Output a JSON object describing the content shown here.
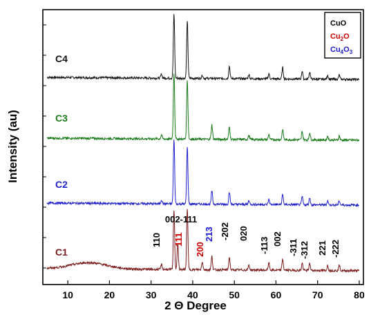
{
  "chart_data": {
    "type": "line",
    "xlabel": "2 Θ Degree",
    "ylabel": "Intensity (au)",
    "xlim": [
      4,
      81
    ],
    "x_ticks": [
      "10",
      "20",
      "30",
      "40",
      "50",
      "60",
      "70",
      "80"
    ],
    "x_tick_values": [
      10,
      20,
      30,
      40,
      50,
      60,
      70,
      80
    ],
    "grid": false,
    "legend": {
      "placement": "top-right",
      "entries": [
        {
          "base": "CuO",
          "sub": "",
          "base2": "",
          "sub2": "",
          "color": "#000000"
        },
        {
          "base": "Cu",
          "sub": "2",
          "base2": "O",
          "sub2": "",
          "color": "#cc0000"
        },
        {
          "base": "Cu",
          "sub": "4",
          "base2": "O",
          "sub2": "3",
          "color": "#1a1acc"
        }
      ]
    },
    "x_range": [
      5,
      80
    ],
    "series": [
      {
        "name": "C4",
        "color": "#111111",
        "baseline": 0.0,
        "peaks": [
          [
            35.5,
            0.62
          ],
          [
            38.7,
            0.55
          ],
          [
            48.8,
            0.12
          ],
          [
            61.6,
            0.11
          ],
          [
            66.3,
            0.08
          ],
          [
            68.1,
            0.07
          ],
          [
            58.3,
            0.05
          ],
          [
            53.5,
            0.04
          ],
          [
            32.5,
            0.04
          ],
          [
            72.4,
            0.04
          ],
          [
            75.2,
            0.04
          ],
          [
            42.3,
            0.03
          ]
        ]
      },
      {
        "name": "C3",
        "color": "#1a7a1a",
        "baseline": 0.0,
        "peaks": [
          [
            35.5,
            0.64
          ],
          [
            38.7,
            0.57
          ],
          [
            44.6,
            0.14
          ],
          [
            48.8,
            0.12
          ],
          [
            61.6,
            0.1
          ],
          [
            66.3,
            0.08
          ],
          [
            68.1,
            0.07
          ],
          [
            58.3,
            0.05
          ],
          [
            53.5,
            0.04
          ],
          [
            32.5,
            0.04
          ],
          [
            72.4,
            0.04
          ],
          [
            75.2,
            0.04
          ]
        ]
      },
      {
        "name": "C2",
        "color": "#1f1fcc",
        "baseline": 0.0,
        "peaks": [
          [
            35.5,
            0.62
          ],
          [
            38.7,
            0.55
          ],
          [
            44.6,
            0.13
          ],
          [
            48.8,
            0.12
          ],
          [
            61.6,
            0.1
          ],
          [
            66.3,
            0.08
          ],
          [
            68.1,
            0.07
          ],
          [
            58.3,
            0.05
          ],
          [
            53.5,
            0.04
          ],
          [
            32.5,
            0.04
          ],
          [
            72.4,
            0.04
          ],
          [
            75.2,
            0.04
          ]
        ]
      },
      {
        "name": "C1",
        "color": "#7a1a1a",
        "baseline": 0.06,
        "peaks": [
          [
            35.5,
            0.58
          ],
          [
            36.4,
            0.25
          ],
          [
            38.7,
            0.6
          ],
          [
            42.3,
            0.08
          ],
          [
            44.6,
            0.13
          ],
          [
            48.8,
            0.12
          ],
          [
            53.5,
            0.05
          ],
          [
            58.3,
            0.07
          ],
          [
            61.6,
            0.11
          ],
          [
            66.3,
            0.07
          ],
          [
            68.1,
            0.07
          ],
          [
            72.4,
            0.05
          ],
          [
            75.2,
            0.05
          ],
          [
            32.5,
            0.05
          ]
        ]
      }
    ],
    "annotations": [
      {
        "text": "110",
        "color": "#000000"
      },
      {
        "text": "002-111",
        "color": "#000000"
      },
      {
        "text": "111",
        "color": "#cc0000"
      },
      {
        "text": "200",
        "color": "#cc0000"
      },
      {
        "text": "213",
        "color": "#1a1acc"
      },
      {
        "text": "-202",
        "color": "#000000"
      },
      {
        "text": "020",
        "color": "#000000"
      },
      {
        "text": "-113",
        "color": "#000000"
      },
      {
        "text": "002",
        "color": "#000000"
      },
      {
        "text": "-311",
        "color": "#000000"
      },
      {
        "text": "-312",
        "color": "#000000"
      },
      {
        "text": "221",
        "color": "#000000"
      },
      {
        "text": "-222",
        "color": "#000000"
      }
    ]
  }
}
